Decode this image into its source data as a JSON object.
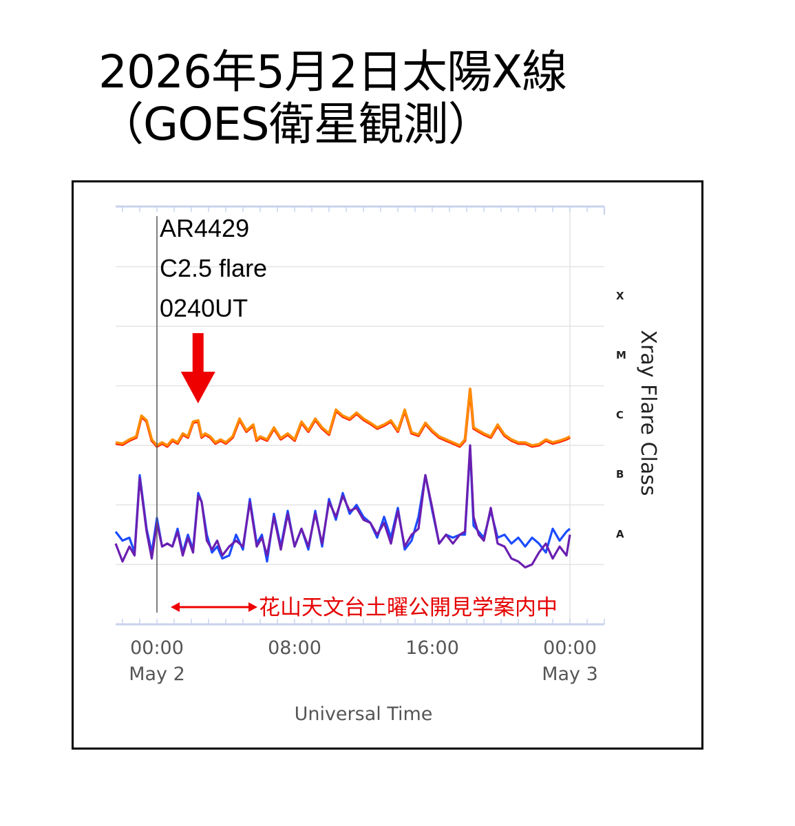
{
  "title": {
    "line1": "2026年5月2日太陽X線",
    "line2": "（GOES衛星観測）"
  },
  "annotation": {
    "region": "AR4429",
    "flare": "C2.5 flare",
    "time": "0240UT"
  },
  "observation_label": "花山天文台土曜公開見学案内中",
  "colors": {
    "long_channel": "#ff8c00",
    "long_channel_edge": "#ff2000",
    "short_channel_blue": "#1a4cff",
    "short_channel_purple": "#6a1fb0",
    "arrow": "#ee0000",
    "grid": "#e3e3e3",
    "border": "#c8d2ec"
  },
  "chart_data": {
    "type": "line",
    "xlabel": "Universal Time",
    "ylabel": "Xray Flare Class",
    "y_scale": "log",
    "y_classes": [
      "A",
      "B",
      "C",
      "M",
      "X"
    ],
    "x_ticks": [
      {
        "time": "00:00",
        "date": "May 2",
        "hour": 0
      },
      {
        "time": "08:00",
        "date": "",
        "hour": 8
      },
      {
        "time": "16:00",
        "date": "",
        "hour": 16
      },
      {
        "time": "00:00",
        "date": "May 3",
        "hour": 24
      }
    ],
    "xlim_hours": [
      -2.4,
      24
    ],
    "ylim_log_class": [
      0,
      5
    ],
    "flare_marker_hour": 2.67,
    "observation_window_hours": [
      1,
      6
    ],
    "series": [
      {
        "channel": "long",
        "color": "orange",
        "hours": [
          -2.4,
          -2.0,
          -1.6,
          -1.2,
          -0.9,
          -0.6,
          -0.3,
          0.0,
          0.3,
          0.6,
          0.9,
          1.2,
          1.5,
          1.8,
          2.1,
          2.4,
          2.6,
          2.8,
          3.1,
          3.4,
          3.7,
          4.0,
          4.4,
          4.8,
          5.2,
          5.6,
          5.8,
          6.0,
          6.4,
          6.8,
          7.2,
          7.6,
          8.0,
          8.4,
          8.8,
          9.2,
          9.6,
          10.0,
          10.4,
          10.8,
          11.2,
          11.6,
          12.0,
          12.4,
          12.8,
          13.2,
          13.6,
          14.0,
          14.4,
          14.8,
          15.2,
          15.6,
          16.0,
          16.4,
          16.8,
          17.2,
          17.6,
          17.9,
          18.2,
          18.4,
          18.7,
          19.0,
          19.4,
          19.8,
          20.2,
          20.6,
          21.0,
          21.4,
          21.8,
          22.2,
          22.6,
          23.0,
          23.4,
          23.8,
          24.0
        ],
        "class_log": [
          2.05,
          2.03,
          2.1,
          2.15,
          2.5,
          2.42,
          2.1,
          2.0,
          2.05,
          2.0,
          2.1,
          2.05,
          2.2,
          2.15,
          2.4,
          2.42,
          2.15,
          2.2,
          2.15,
          2.05,
          2.1,
          2.05,
          2.15,
          2.45,
          2.25,
          2.35,
          2.1,
          2.15,
          2.1,
          2.3,
          2.12,
          2.2,
          2.1,
          2.4,
          2.25,
          2.45,
          2.3,
          2.2,
          2.6,
          2.5,
          2.45,
          2.55,
          2.45,
          2.38,
          2.3,
          2.35,
          2.42,
          2.25,
          2.6,
          2.22,
          2.18,
          2.38,
          2.25,
          2.15,
          2.1,
          2.05,
          2.0,
          2.1,
          2.95,
          2.3,
          2.25,
          2.2,
          2.15,
          2.35,
          2.18,
          2.1,
          2.05,
          2.05,
          2.0,
          2.02,
          2.1,
          2.05,
          2.08,
          2.12,
          2.15
        ]
      },
      {
        "channel": "short",
        "color": "blue",
        "hours": [
          -2.4,
          -2.0,
          -1.6,
          -1.3,
          -1.0,
          -0.6,
          -0.3,
          0.0,
          0.3,
          0.6,
          0.9,
          1.2,
          1.5,
          1.8,
          2.1,
          2.4,
          2.6,
          2.9,
          3.2,
          3.5,
          3.8,
          4.2,
          4.6,
          5.0,
          5.4,
          5.8,
          6.1,
          6.4,
          6.8,
          7.2,
          7.6,
          8.0,
          8.4,
          8.8,
          9.2,
          9.6,
          10.0,
          10.4,
          10.8,
          11.2,
          11.6,
          12.0,
          12.4,
          12.8,
          13.2,
          13.6,
          14.0,
          14.4,
          14.8,
          15.2,
          15.6,
          16.0,
          16.4,
          16.8,
          17.2,
          17.6,
          17.9,
          18.2,
          18.4,
          18.7,
          19.0,
          19.4,
          19.8,
          20.2,
          20.6,
          21.0,
          21.4,
          21.8,
          22.2,
          22.6,
          23.0,
          23.4,
          23.8,
          24.0
        ],
        "class_log": [
          0.55,
          0.4,
          0.45,
          0.2,
          1.5,
          0.6,
          0.2,
          0.78,
          0.3,
          0.35,
          0.3,
          0.6,
          0.2,
          0.5,
          0.25,
          1.2,
          1.05,
          0.5,
          0.2,
          0.3,
          0.1,
          0.15,
          0.5,
          0.25,
          1.1,
          0.35,
          0.5,
          0.05,
          0.85,
          0.3,
          0.9,
          0.3,
          0.6,
          0.25,
          0.9,
          0.3,
          1.1,
          0.75,
          1.2,
          0.85,
          1.0,
          0.8,
          0.7,
          0.45,
          0.8,
          0.45,
          0.95,
          0.25,
          0.4,
          0.8,
          1.5,
          0.9,
          0.35,
          0.5,
          0.45,
          0.5,
          0.5,
          1.95,
          0.65,
          0.55,
          0.45,
          0.9,
          0.45,
          0.5,
          0.35,
          0.45,
          0.3,
          0.45,
          0.35,
          0.2,
          0.6,
          0.4,
          0.55,
          0.6
        ]
      },
      {
        "channel": "short",
        "color": "purple",
        "hours": [
          -2.4,
          -2.0,
          -1.6,
          -1.3,
          -1.0,
          -0.6,
          -0.3,
          0.0,
          0.3,
          0.6,
          0.9,
          1.2,
          1.5,
          1.8,
          2.1,
          2.4,
          2.6,
          2.9,
          3.2,
          3.5,
          3.8,
          4.2,
          4.6,
          5.0,
          5.4,
          5.8,
          6.1,
          6.4,
          6.8,
          7.2,
          7.6,
          8.0,
          8.4,
          8.8,
          9.2,
          9.6,
          10.0,
          10.4,
          10.8,
          11.2,
          11.6,
          12.0,
          12.4,
          12.8,
          13.2,
          13.6,
          14.0,
          14.4,
          14.8,
          15.2,
          15.6,
          16.0,
          16.4,
          16.8,
          17.2,
          17.6,
          17.9,
          18.2,
          18.4,
          18.7,
          19.0,
          19.4,
          19.8,
          20.2,
          20.6,
          21.0,
          21.4,
          21.8,
          22.2,
          22.6,
          23.0,
          23.4,
          23.8,
          24.0
        ],
        "class_log": [
          0.35,
          0.05,
          0.3,
          0.15,
          1.45,
          0.55,
          0.1,
          0.7,
          0.3,
          0.35,
          0.3,
          0.55,
          0.15,
          0.45,
          0.2,
          1.15,
          1.05,
          0.4,
          0.25,
          0.4,
          0.15,
          0.3,
          0.4,
          0.3,
          1.05,
          0.3,
          0.45,
          0.15,
          0.8,
          0.25,
          0.85,
          0.3,
          0.6,
          0.3,
          0.85,
          0.35,
          1.05,
          0.8,
          1.15,
          0.9,
          0.95,
          0.75,
          0.7,
          0.5,
          0.7,
          0.35,
          0.9,
          0.3,
          0.5,
          0.6,
          1.5,
          0.95,
          0.35,
          0.5,
          0.35,
          0.5,
          0.55,
          2.0,
          0.8,
          0.5,
          0.4,
          0.95,
          0.35,
          0.3,
          0.1,
          0.05,
          -0.05,
          0.0,
          0.2,
          0.35,
          0.1,
          0.3,
          0.15,
          0.5
        ]
      }
    ]
  }
}
